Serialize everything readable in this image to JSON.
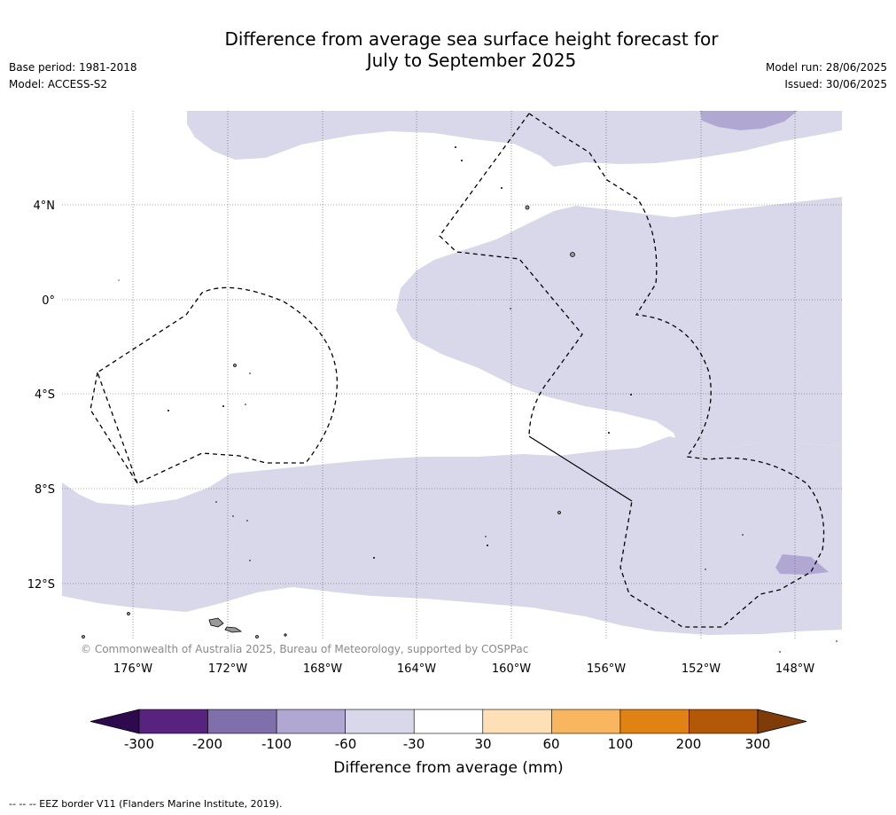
{
  "title_line1": "Difference from average sea surface height forecast for",
  "title_line2": "July to September 2025",
  "base_period": "Base period: 1981-2018",
  "model": "Model: ACCESS-S2",
  "model_run": "Model run: 28/06/2025",
  "issued": "Issued: 30/06/2025",
  "copyright": "© Commonwealth of Australia 2025, Bureau of Meteorology, supported by COSPPac",
  "lat_labels": [
    "4°N",
    "0°",
    "4°S",
    "8°S",
    "12°S"
  ],
  "lon_labels": [
    "176°W",
    "172°W",
    "168°W",
    "164°W",
    "160°W",
    "156°W",
    "152°W",
    "148°W"
  ],
  "colorbar": {
    "label": "Difference from average (mm)",
    "ticks": [
      "-300",
      "-200",
      "-100",
      "-60",
      "-30",
      "30",
      "60",
      "100",
      "200",
      "300"
    ],
    "colors": [
      "#2d0a4e",
      "#57237f",
      "#7f70ab",
      "#b0a8d2",
      "#d8d8ea",
      "#ffffff",
      "#fde0b5",
      "#f8b660",
      "#e08214",
      "#b35806",
      "#7f3b08"
    ]
  },
  "footer": "--  --  -- EEZ border V11 (Flanders Marine Institute, 2019)."
}
